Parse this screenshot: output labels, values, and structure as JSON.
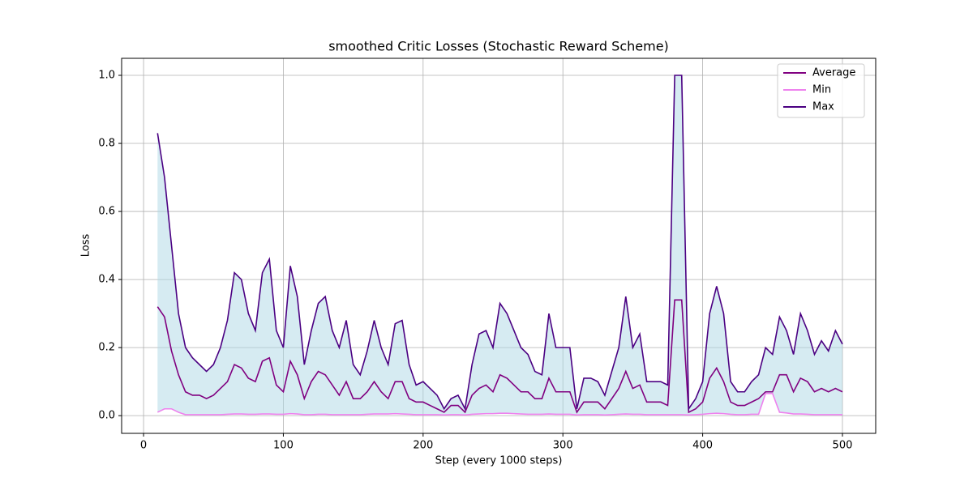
{
  "chart_data": {
    "type": "line",
    "title": "smoothed Critic Losses (Stochastic Reward Scheme)",
    "x_label": "Step (every 1000 steps)",
    "y_label": "Loss",
    "x": [
      10,
      15,
      20,
      25,
      30,
      35,
      40,
      45,
      50,
      55,
      60,
      65,
      70,
      75,
      80,
      85,
      90,
      95,
      100,
      105,
      110,
      115,
      120,
      125,
      130,
      135,
      140,
      145,
      150,
      155,
      160,
      165,
      170,
      175,
      180,
      185,
      190,
      195,
      200,
      205,
      210,
      215,
      220,
      225,
      230,
      235,
      240,
      245,
      250,
      255,
      260,
      265,
      270,
      275,
      280,
      285,
      290,
      295,
      300,
      305,
      310,
      315,
      320,
      325,
      330,
      335,
      340,
      345,
      350,
      355,
      360,
      365,
      370,
      375,
      380,
      385,
      390,
      395,
      400,
      405,
      410,
      415,
      420,
      425,
      430,
      435,
      440,
      445,
      450,
      455,
      460,
      465,
      470,
      475,
      480,
      485,
      490,
      495,
      500
    ],
    "series": [
      {
        "name": "Average",
        "color": "#800080",
        "values": [
          0.32,
          0.29,
          0.19,
          0.12,
          0.07,
          0.06,
          0.06,
          0.05,
          0.06,
          0.08,
          0.1,
          0.15,
          0.14,
          0.11,
          0.1,
          0.16,
          0.17,
          0.09,
          0.07,
          0.16,
          0.12,
          0.05,
          0.1,
          0.13,
          0.12,
          0.09,
          0.06,
          0.1,
          0.05,
          0.05,
          0.07,
          0.1,
          0.07,
          0.05,
          0.1,
          0.1,
          0.05,
          0.04,
          0.04,
          0.03,
          0.02,
          0.01,
          0.03,
          0.03,
          0.01,
          0.06,
          0.08,
          0.09,
          0.07,
          0.12,
          0.11,
          0.09,
          0.07,
          0.07,
          0.05,
          0.05,
          0.11,
          0.07,
          0.07,
          0.07,
          0.01,
          0.04,
          0.04,
          0.04,
          0.02,
          0.05,
          0.08,
          0.13,
          0.08,
          0.09,
          0.04,
          0.04,
          0.04,
          0.03,
          0.34,
          0.34,
          0.01,
          0.02,
          0.04,
          0.11,
          0.14,
          0.1,
          0.04,
          0.03,
          0.03,
          0.04,
          0.05,
          0.07,
          0.07,
          0.12,
          0.12,
          0.07,
          0.11,
          0.1,
          0.07,
          0.08,
          0.07,
          0.08,
          0.07
        ]
      },
      {
        "name": "Min",
        "color": "#ee82ee",
        "values": [
          0.01,
          0.02,
          0.02,
          0.01,
          0.003,
          0.003,
          0.003,
          0.003,
          0.003,
          0.003,
          0.004,
          0.005,
          0.005,
          0.004,
          0.004,
          0.005,
          0.005,
          0.004,
          0.004,
          0.006,
          0.005,
          0.003,
          0.003,
          0.004,
          0.004,
          0.003,
          0.003,
          0.003,
          0.003,
          0.003,
          0.004,
          0.005,
          0.005,
          0.005,
          0.006,
          0.005,
          0.004,
          0.003,
          0.003,
          0.003,
          0.003,
          0.002,
          0.003,
          0.003,
          0.002,
          0.004,
          0.005,
          0.006,
          0.006,
          0.007,
          0.007,
          0.006,
          0.005,
          0.004,
          0.004,
          0.004,
          0.005,
          0.004,
          0.004,
          0.004,
          0.002,
          0.003,
          0.003,
          0.003,
          0.002,
          0.003,
          0.004,
          0.005,
          0.004,
          0.004,
          0.003,
          0.003,
          0.003,
          0.003,
          0.003,
          0.003,
          0.002,
          0.003,
          0.004,
          0.006,
          0.007,
          0.006,
          0.004,
          0.003,
          0.003,
          0.004,
          0.004,
          0.065,
          0.065,
          0.01,
          0.008,
          0.005,
          0.005,
          0.004,
          0.003,
          0.003,
          0.003,
          0.003,
          0.003
        ]
      },
      {
        "name": "Max",
        "color": "#4b0082",
        "values": [
          0.83,
          0.7,
          0.5,
          0.3,
          0.2,
          0.17,
          0.15,
          0.13,
          0.15,
          0.2,
          0.28,
          0.42,
          0.4,
          0.3,
          0.25,
          0.42,
          0.46,
          0.25,
          0.2,
          0.44,
          0.35,
          0.15,
          0.25,
          0.33,
          0.35,
          0.25,
          0.2,
          0.28,
          0.15,
          0.12,
          0.19,
          0.28,
          0.2,
          0.15,
          0.27,
          0.28,
          0.15,
          0.09,
          0.1,
          0.08,
          0.06,
          0.02,
          0.05,
          0.06,
          0.02,
          0.15,
          0.24,
          0.25,
          0.2,
          0.33,
          0.3,
          0.25,
          0.2,
          0.18,
          0.13,
          0.12,
          0.3,
          0.2,
          0.2,
          0.2,
          0.02,
          0.11,
          0.11,
          0.1,
          0.06,
          0.13,
          0.2,
          0.35,
          0.2,
          0.24,
          0.1,
          0.1,
          0.1,
          0.09,
          1.0,
          1.0,
          0.02,
          0.05,
          0.1,
          0.3,
          0.38,
          0.3,
          0.1,
          0.07,
          0.07,
          0.1,
          0.12,
          0.2,
          0.18,
          0.29,
          0.25,
          0.18,
          0.3,
          0.25,
          0.18,
          0.22,
          0.19,
          0.25,
          0.21
        ]
      }
    ],
    "fill_color": "#add8e6",
    "fill_opacity": 0.5,
    "xlim": [
      -15.7,
      523.8
    ],
    "xticks": [
      0,
      100,
      200,
      300,
      400,
      500
    ],
    "ylim": [
      -0.052,
      1.05
    ],
    "yticks": [
      {
        "value": 0,
        "label": "0.0"
      },
      0.2,
      0.4,
      0.6,
      0.8,
      {
        "value": 1,
        "label": "1.0"
      }
    ],
    "grid": true,
    "legend": "upper right"
  }
}
